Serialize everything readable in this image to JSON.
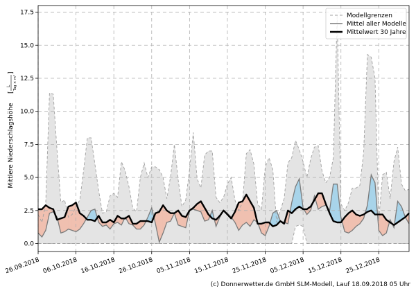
{
  "footer": "(c) Donnerwetter.de GmbH SLM-Modell, Lauf 18.09.2018 05 Uhr",
  "chart_data": {
    "type": "line",
    "ylabel": "Mittlere Niederschlagshöhe",
    "ylabel_unit_num": "L",
    "ylabel_unit_den": "Tag × m²",
    "ylim": [
      -0.6,
      18.0
    ],
    "y_ticks": [
      0.0,
      2.5,
      5.0,
      7.5,
      10.0,
      12.5,
      15.0,
      17.5
    ],
    "y_tick_labels": [
      "0.0",
      "2.5",
      "5.0",
      "7.5",
      "10.0",
      "12.5",
      "15.0",
      "17.5"
    ],
    "grid": true,
    "legend_position": "top-right",
    "x_range_days": [
      0,
      98
    ],
    "x_tick_days": [
      0,
      10,
      20,
      30,
      40,
      50,
      60,
      70,
      80,
      90
    ],
    "x_tick_labels": [
      "26.09.2018",
      "06.10.2018",
      "16.10.2018",
      "26.10.2018",
      "05.11.2018",
      "15.11.2018",
      "25.11.2018",
      "05.12.2018",
      "15.12.2018",
      "25.12.2018"
    ],
    "x_days": [
      0,
      1,
      2,
      3,
      4,
      5,
      6,
      7,
      8,
      9,
      10,
      11,
      12,
      13,
      14,
      15,
      16,
      17,
      18,
      19,
      20,
      21,
      22,
      23,
      24,
      25,
      26,
      27,
      28,
      29,
      30,
      31,
      32,
      33,
      34,
      35,
      36,
      37,
      38,
      39,
      40,
      41,
      42,
      43,
      44,
      45,
      46,
      47,
      48,
      49,
      50,
      51,
      52,
      53,
      54,
      55,
      56,
      57,
      58,
      59,
      60,
      61,
      62,
      63,
      64,
      65,
      66,
      67,
      68,
      69,
      70,
      71,
      72,
      73,
      74,
      75,
      76,
      77,
      78,
      79,
      80,
      81,
      82,
      83,
      84,
      85,
      86,
      87,
      88,
      89,
      90,
      91,
      92,
      93,
      94,
      95,
      96,
      97,
      98
    ],
    "series": [
      {
        "name": "Modellgrenzen",
        "color": "#a0a0a0",
        "style": "dashed",
        "upper": [
          2.2,
          1.6,
          3.0,
          11.4,
          11.3,
          7.0,
          3.1,
          3.3,
          2.0,
          2.2,
          2.8,
          3.3,
          5.5,
          8.0,
          8.0,
          6.0,
          4.0,
          2.3,
          2.4,
          3.6,
          3.8,
          3.5,
          6.2,
          5.5,
          4.3,
          2.7,
          2.4,
          5.0,
          6.1,
          5.0,
          5.8,
          5.8,
          5.6,
          5.0,
          3.4,
          5.1,
          7.5,
          4.8,
          2.8,
          3.3,
          5.6,
          8.4,
          4.9,
          4.2,
          6.7,
          7.0,
          7.0,
          3.5,
          3.1,
          3.5,
          4.5,
          5.0,
          3.3,
          2.5,
          3.1,
          6.8,
          7.1,
          6.0,
          3.0,
          2.6,
          5.8,
          6.5,
          5.6,
          1.6,
          2.5,
          3.4,
          6.1,
          6.5,
          7.8,
          7.1,
          6.2,
          5.0,
          6.4,
          7.3,
          7.4,
          5.5,
          4.6,
          5.0,
          6.5,
          17.3,
          3.0,
          2.5,
          3.1,
          4.2,
          4.2,
          4.4,
          6.9,
          14.3,
          14.1,
          12.5,
          1.8,
          5.2,
          5.4,
          3.4,
          6.2,
          7.3,
          4.5,
          4.0,
          4.1
        ],
        "lower": [
          0.0,
          0.0,
          0.0,
          0.0,
          0.0,
          0.0,
          0.0,
          0.0,
          0.0,
          0.0,
          0.0,
          0.0,
          0.0,
          0.0,
          0.0,
          0.0,
          0.0,
          0.0,
          0.0,
          0.0,
          0.0,
          0.0,
          0.0,
          0.0,
          0.0,
          0.0,
          0.0,
          0.0,
          0.0,
          0.0,
          0.0,
          0.0,
          0.0,
          0.0,
          0.0,
          0.0,
          0.0,
          0.0,
          0.0,
          0.0,
          0.0,
          0.0,
          0.0,
          0.0,
          0.0,
          0.0,
          0.0,
          0.0,
          0.0,
          0.0,
          0.0,
          0.0,
          0.0,
          0.0,
          0.0,
          0.0,
          0.0,
          0.0,
          0.0,
          0.0,
          0.0,
          0.0,
          0.0,
          0.0,
          0.0,
          0.0,
          0.0,
          0.0,
          1.3,
          1.4,
          1.3,
          0.0,
          0.0,
          0.0,
          0.0,
          0.0,
          0.0,
          0.0,
          0.0,
          0.0,
          0.0,
          0.0,
          0.0,
          0.0,
          0.0,
          0.0,
          0.0,
          0.0,
          0.0,
          0.0,
          0.0,
          0.0,
          0.0,
          0.0,
          0.0,
          0.0,
          0.0,
          0.0,
          0.0
        ]
      },
      {
        "name": "Mittel aller Modelle",
        "color": "#7a7a7a",
        "values": [
          0.8,
          0.5,
          1.0,
          2.3,
          2.4,
          2.0,
          0.8,
          0.9,
          1.1,
          1.0,
          0.9,
          1.1,
          1.5,
          2.0,
          2.5,
          2.6,
          1.6,
          1.3,
          1.4,
          1.1,
          1.5,
          1.6,
          1.4,
          2.0,
          1.5,
          1.4,
          1.1,
          1.1,
          1.4,
          2.0,
          2.7,
          1.5,
          0.1,
          0.8,
          1.6,
          1.7,
          2.3,
          1.4,
          1.3,
          1.2,
          2.5,
          2.6,
          2.5,
          2.4,
          1.7,
          1.8,
          2.5,
          1.3,
          2.0,
          2.5,
          2.3,
          2.0,
          1.6,
          1.0,
          1.4,
          1.6,
          1.3,
          1.8,
          1.6,
          0.8,
          0.6,
          1.3,
          2.3,
          2.5,
          1.7,
          1.6,
          1.5,
          3.1,
          4.3,
          4.9,
          2.7,
          2.2,
          2.5,
          3.6,
          2.6,
          2.8,
          2.9,
          2.5,
          4.5,
          4.5,
          2.0,
          0.9,
          0.8,
          1.0,
          1.3,
          1.5,
          1.9,
          2.9,
          5.2,
          4.6,
          1.0,
          0.6,
          0.8,
          1.8,
          1.2,
          3.2,
          2.8,
          2.0,
          1.5
        ]
      },
      {
        "name": "Mittelwert 30 Jahre",
        "color": "#000000",
        "values": [
          2.6,
          2.6,
          2.9,
          2.7,
          2.6,
          1.8,
          1.9,
          2.0,
          2.8,
          2.9,
          3.1,
          2.3,
          2.1,
          1.8,
          1.8,
          1.7,
          2.1,
          1.6,
          1.6,
          1.8,
          1.6,
          2.1,
          1.9,
          1.9,
          2.1,
          1.5,
          1.5,
          1.7,
          1.7,
          1.7,
          1.6,
          2.3,
          2.4,
          2.9,
          2.5,
          2.3,
          2.3,
          2.5,
          2.1,
          2.0,
          2.5,
          2.7,
          3.0,
          3.2,
          2.7,
          2.2,
          1.9,
          1.8,
          2.1,
          2.5,
          2.2,
          1.9,
          2.4,
          3.1,
          3.2,
          3.7,
          3.2,
          2.7,
          1.5,
          1.5,
          1.6,
          1.6,
          1.3,
          1.4,
          1.7,
          1.5,
          2.5,
          2.3,
          2.6,
          2.8,
          2.6,
          2.6,
          2.8,
          3.3,
          3.8,
          3.8,
          3.0,
          2.3,
          1.7,
          1.6,
          1.6,
          2.0,
          2.3,
          2.5,
          2.2,
          2.1,
          2.2,
          2.4,
          2.5,
          2.2,
          2.2,
          2.2,
          1.8,
          1.6,
          1.4,
          1.6,
          1.8,
          2.0,
          2.3
        ]
      }
    ],
    "fill_colors": {
      "band": "#e4e4e4",
      "above_normal": "#a8d4ea",
      "below_normal": "#f0c0b0"
    }
  }
}
